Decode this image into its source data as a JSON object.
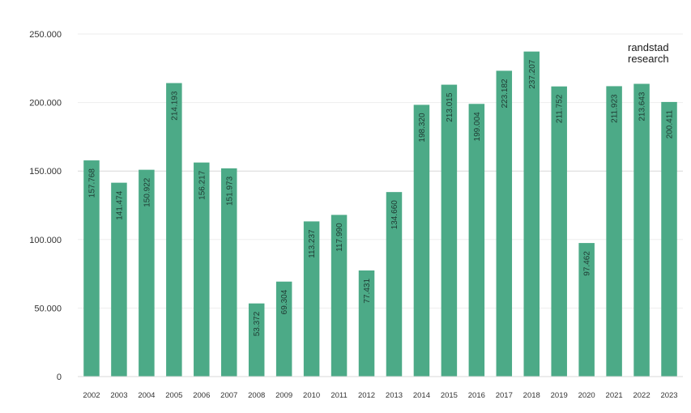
{
  "brand": {
    "line1": "randstad",
    "line2": "research"
  },
  "chart_data": {
    "type": "bar",
    "title": "",
    "xlabel": "",
    "ylabel": "",
    "ylim": [
      0,
      250000
    ],
    "y_ticks": [
      0,
      50000,
      100000,
      150000,
      200000,
      250000
    ],
    "y_tick_labels": [
      "0",
      "50.000",
      "100.000",
      "150.000",
      "200.000",
      "250.000"
    ],
    "grid": true,
    "bar_color": "#4caa87",
    "categories": [
      "2002",
      "2003",
      "2004",
      "2005",
      "2006",
      "2007",
      "2008",
      "2009",
      "2010",
      "2011",
      "2012",
      "2013",
      "2014",
      "2015",
      "2016",
      "2017",
      "2018",
      "2019",
      "2020",
      "2021",
      "2022",
      "2023"
    ],
    "values": [
      157768,
      141474,
      150922,
      214193,
      156217,
      151973,
      53372,
      69304,
      113237,
      117990,
      77431,
      134660,
      198320,
      213015,
      199004,
      223182,
      237207,
      211752,
      97462,
      211923,
      213643,
      200411
    ],
    "value_labels": [
      "157.768",
      "141.474",
      "150.922",
      "214.193",
      "156.217",
      "151.973",
      "53.372",
      "69.304",
      "113.237",
      "117.990",
      "77.431",
      "134.660",
      "198.320",
      "213.015",
      "199.004",
      "223.182",
      "237.207",
      "211.752",
      "97.462",
      "211.923",
      "213.643",
      "200.411"
    ]
  }
}
